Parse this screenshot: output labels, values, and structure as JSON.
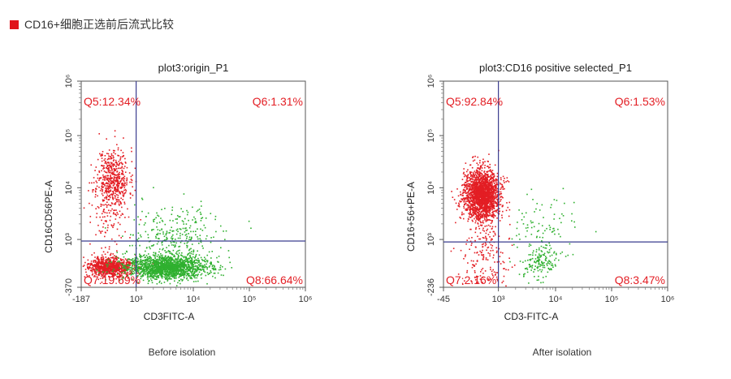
{
  "header": {
    "title": "CD16+细胞正选前后流式比较"
  },
  "colors": {
    "accent_square": "#e0141a",
    "axis_blue": "#3a3d8f",
    "red_population": "#e31e24",
    "green_population": "#2fb02f",
    "quadrant_label": "#e31e24"
  },
  "chart_data": [
    {
      "type": "scatter",
      "title": "plot3:origin_P1",
      "xlabel": "CD3FITC-A",
      "ylabel": "CD16CD56PE-A",
      "x_scale": "log",
      "y_scale": "log",
      "x_ticks": [
        "-187",
        "10³",
        "10⁴",
        "10⁵",
        "10⁶"
      ],
      "y_ticks": [
        "-370",
        "10³",
        "10⁴",
        "10⁵",
        "10⁶"
      ],
      "quadrant_gate": {
        "x": 1000,
        "y": 800
      },
      "quadrants": [
        {
          "name": "Q5",
          "label": "Q5:12.34%",
          "percent": 12.34
        },
        {
          "name": "Q6",
          "label": "Q6:1.31%",
          "percent": 1.31
        },
        {
          "name": "Q7",
          "label": "Q7:19.69%",
          "percent": 19.69
        },
        {
          "name": "Q8",
          "label": "Q8:66.64%",
          "percent": 66.64
        }
      ],
      "caption": "Before isolation"
    },
    {
      "type": "scatter",
      "title": "plot3:CD16 positive selected_P1",
      "xlabel": "CD3-FITC-A",
      "ylabel": "CD16+56+PE-A",
      "x_scale": "log",
      "y_scale": "log",
      "x_ticks": [
        "-45",
        "10³",
        "10⁴",
        "10⁵",
        "10⁶"
      ],
      "y_ticks": [
        "-236",
        "10³",
        "10⁴",
        "10⁵",
        "10⁶"
      ],
      "quadrant_gate": {
        "x": 1000,
        "y": 700
      },
      "quadrants": [
        {
          "name": "Q5",
          "label": "Q5:92.84%",
          "percent": 92.84
        },
        {
          "name": "Q6",
          "label": "Q6:1.53%",
          "percent": 1.53
        },
        {
          "name": "Q7",
          "label": "Q7:2.16%",
          "percent": 2.16
        },
        {
          "name": "Q8",
          "label": "Q8:3.47%",
          "percent": 3.47
        }
      ],
      "caption": "After isolation"
    }
  ]
}
